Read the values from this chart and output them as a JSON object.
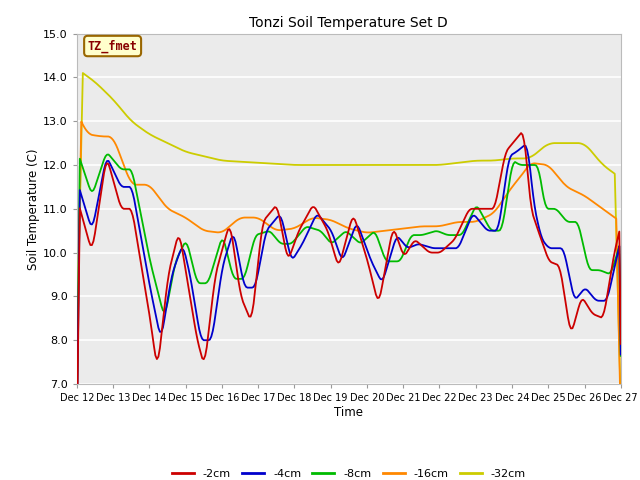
{
  "title": "Tonzi Soil Temperature Set D",
  "xlabel": "Time",
  "ylabel": "Soil Temperature (C)",
  "ylim": [
    7.0,
    15.0
  ],
  "yticks": [
    7.0,
    8.0,
    9.0,
    10.0,
    11.0,
    12.0,
    13.0,
    14.0,
    15.0
  ],
  "background_color": "#ffffff",
  "plot_bg_color": "#ebebeb",
  "series_colors": {
    "-2cm": "#cc0000",
    "-4cm": "#0000cc",
    "-8cm": "#00bb00",
    "-16cm": "#ff8800",
    "-32cm": "#cccc00"
  },
  "annotation_text": "TZ_fmet",
  "annotation_bg": "#ffffcc",
  "annotation_border": "#996600",
  "annotation_text_color": "#880000",
  "xtick_labels": [
    "Dec 12",
    "Dec 13",
    "Dec 14",
    "Dec 15",
    "Dec 16",
    "Dec 17",
    "Dec 18",
    "Dec 19",
    "Dec 20",
    "Dec 21",
    "Dec 22",
    "Dec 23",
    "Dec 24",
    "Dec 25",
    "Dec 26",
    "Dec 27"
  ]
}
